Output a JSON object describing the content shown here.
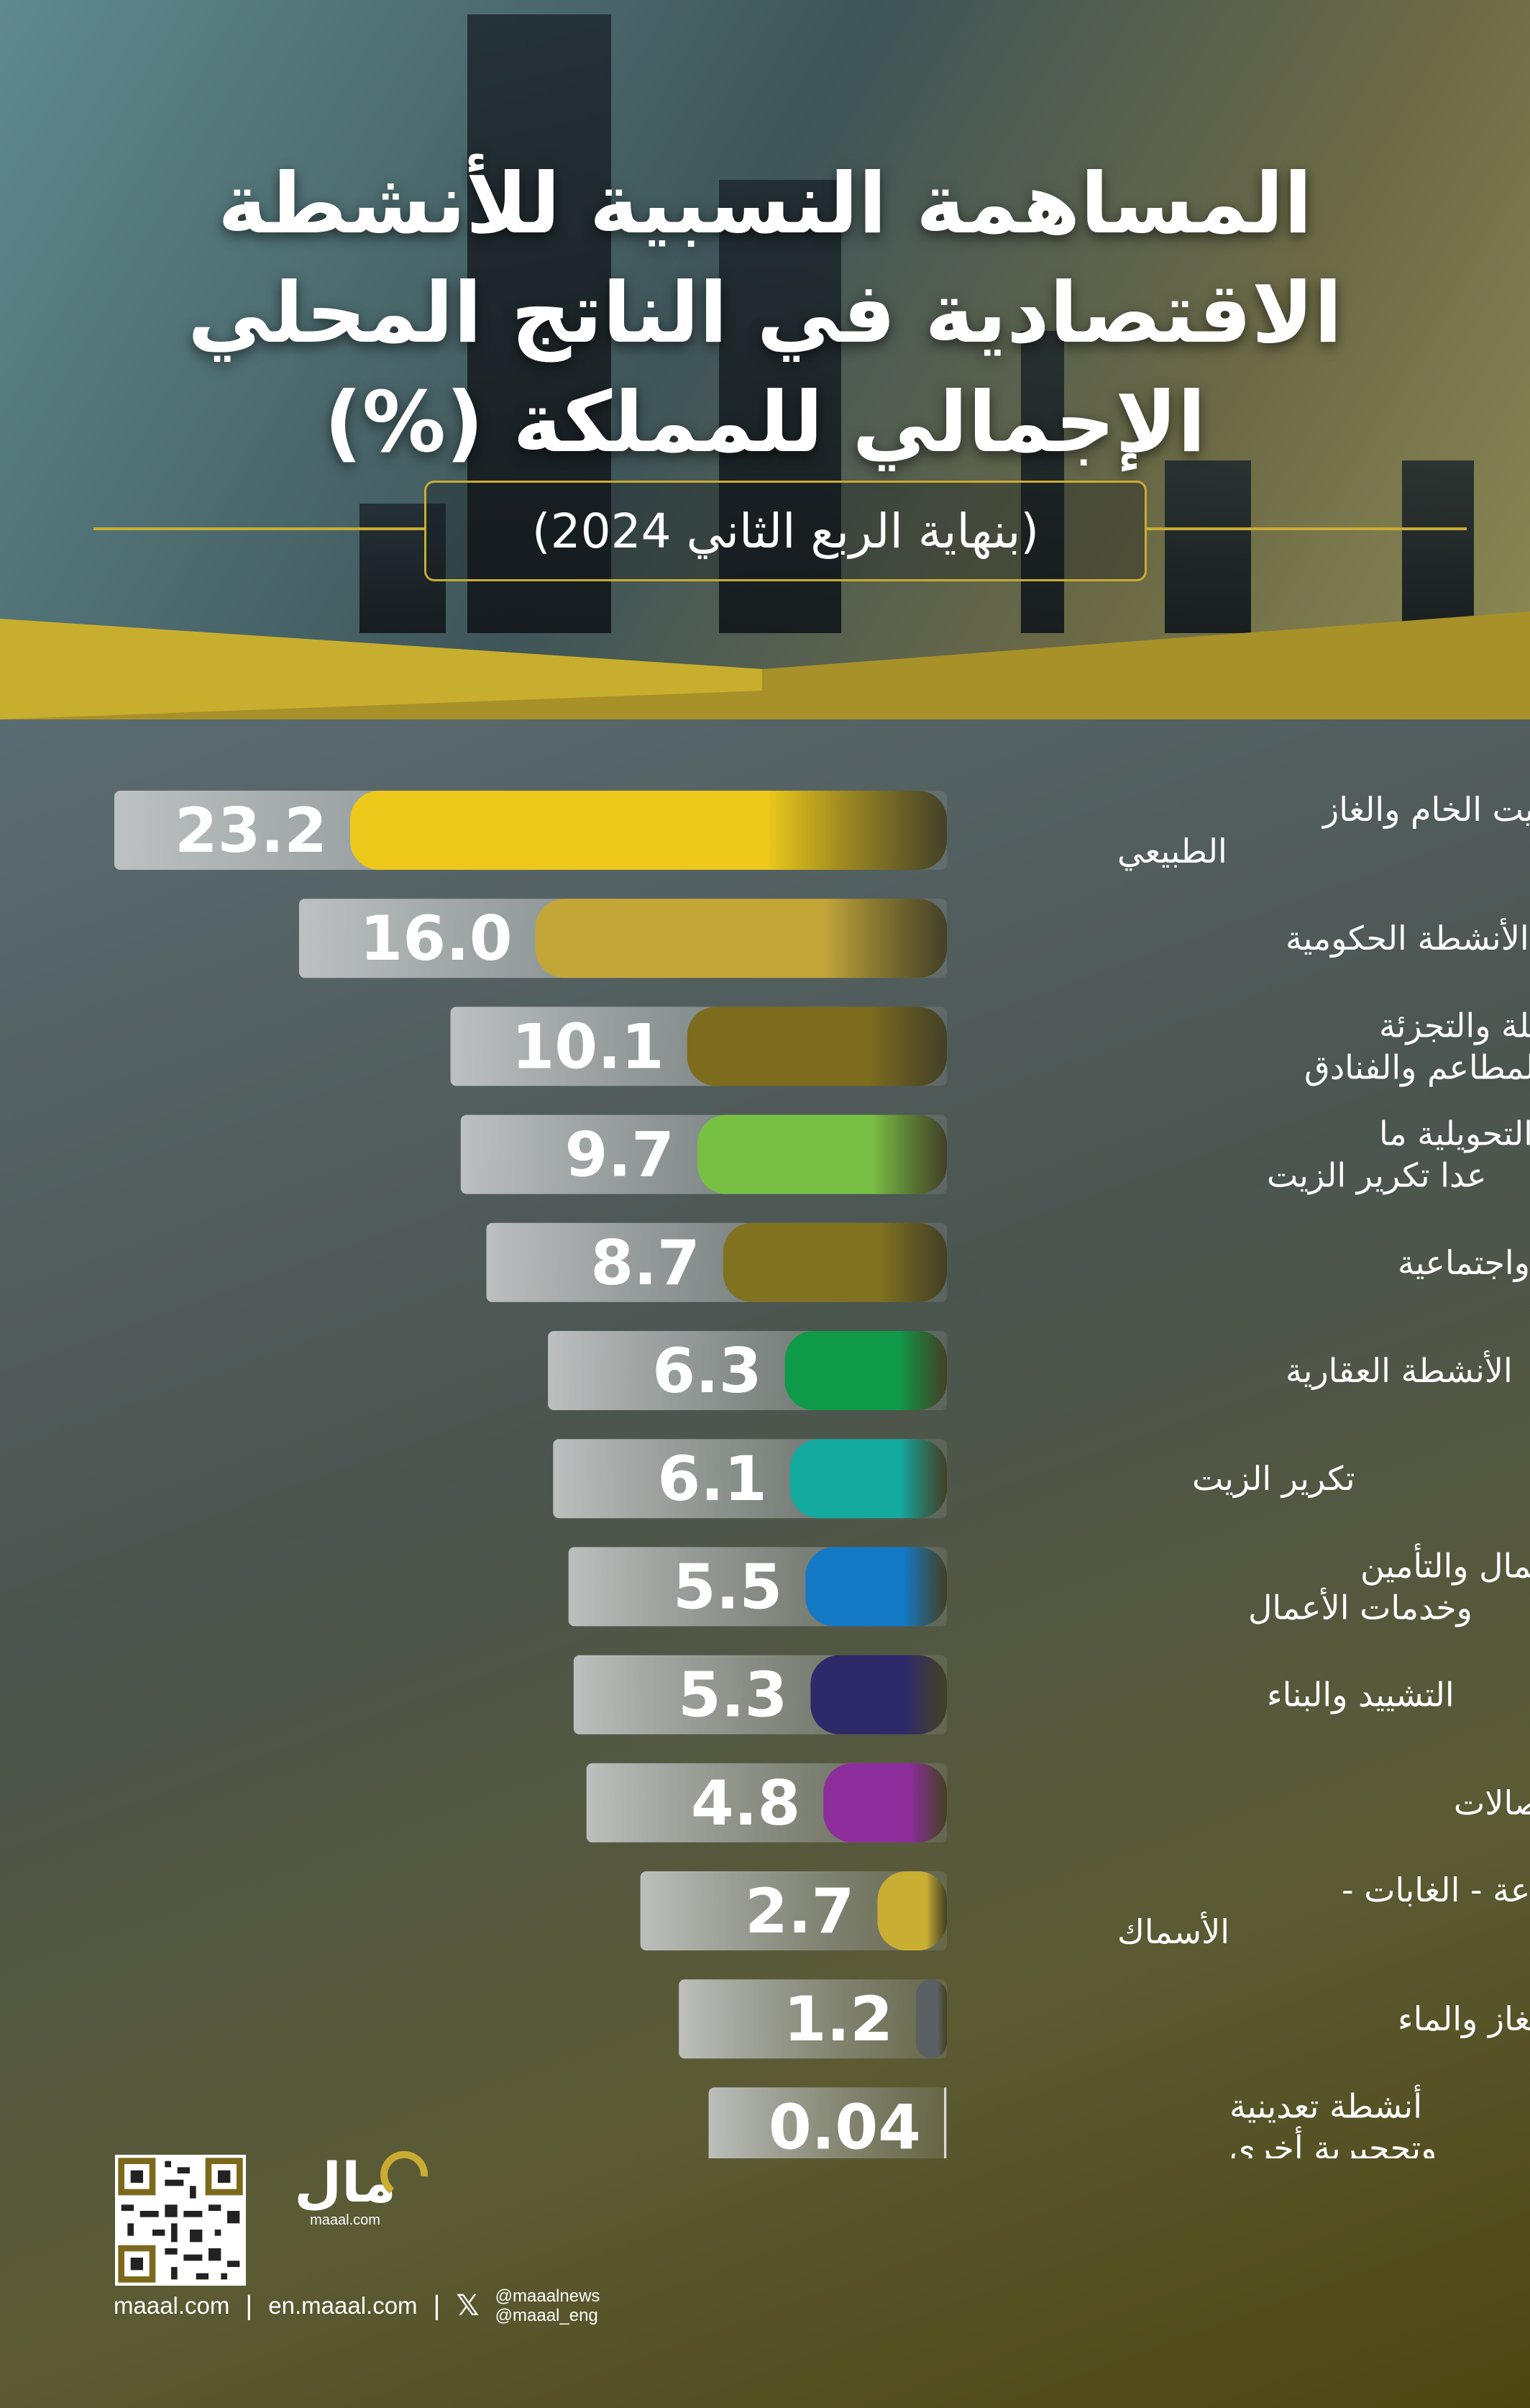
{
  "header": {
    "title_lines": [
      "المساهمة النسبية للأنشطة",
      "الاقتصادية في الناتج المحلي",
      "الإجمالي للمملكة (%)"
    ],
    "subtitle": "(بنهاية الربع الثاني 2024)"
  },
  "chart_data": {
    "type": "bar",
    "orientation": "horizontal",
    "unit": "%",
    "categories": [
      [
        "الزيت الخام والغاز",
        "الطبيعي"
      ],
      [
        "الأنشطة الحكومية"
      ],
      [
        "تجارة الجملة والتجزئة",
        "والمطاعم والفنادق"
      ],
      [
        "الصناعات التحويلية ما",
        "عدا تكرير الزيت"
      ],
      [
        "خدمات جماعية واجتماعية"
      ],
      [
        "الأنشطة العقارية"
      ],
      [
        "تكرير الزيت"
      ],
      [
        "خدمات المال والتأمين",
        "وخدمات الأعمال"
      ],
      [
        "التشييد والبناء"
      ],
      [
        "النقل والتخزين والاتصالات"
      ],
      [
        "الزراعة - الغابات -",
        "الأسماك"
      ],
      [
        "الكهرباء، الغاز والماء"
      ],
      [
        "أنشطة تعدينية",
        "وتحجيرية أخرى"
      ]
    ],
    "values": [
      23.2,
      16.0,
      10.1,
      9.7,
      8.7,
      6.3,
      6.1,
      5.5,
      5.3,
      4.8,
      2.7,
      1.2,
      0.04
    ],
    "value_labels": [
      "23.2",
      "16.0",
      "10.1",
      "9.7",
      "8.7",
      "6.3",
      "6.1",
      "5.5",
      "5.3",
      "4.8",
      "2.7",
      "1.2",
      "0.04"
    ],
    "bar_colors": [
      "#ecc81a",
      "#c2a638",
      "#7d6c1e",
      "#78c044",
      "#807220",
      "#0e9a48",
      "#14aaa0",
      "#1479c4",
      "#2e2a6a",
      "#8e2d9c",
      "#c9ae34",
      "#5a6064",
      "#d8d8d8"
    ],
    "xlim": [
      0,
      23.2
    ],
    "axis": "none",
    "grid": false
  },
  "footer": {
    "brand_name": "مال",
    "brand_domain": "maaal.com",
    "link_main": "maaal.com",
    "link_en": "en.maaal.com",
    "x_icon": "x-logo-icon",
    "handle_1": "@maaalnews",
    "handle_2": "@maaal_eng"
  }
}
